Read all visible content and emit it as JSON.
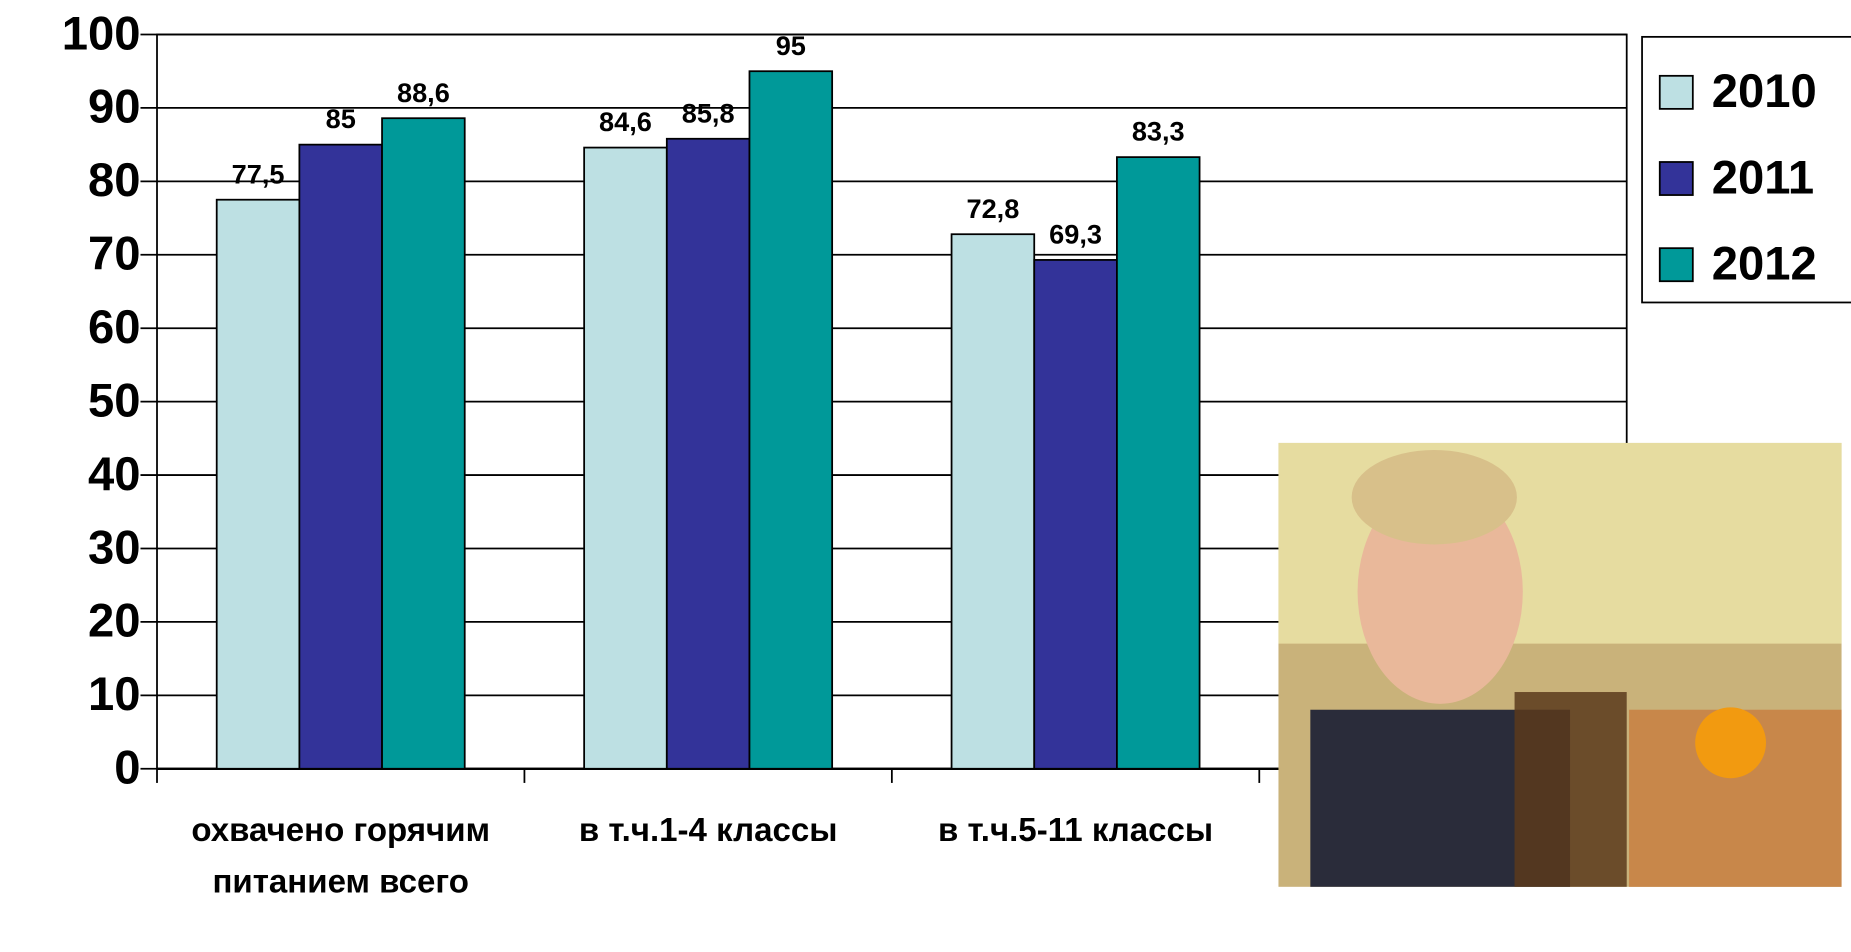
{
  "chart_data": {
    "type": "bar",
    "categories": [
      "охвачено горячим питанием всего",
      "в т.ч.1-4 классы",
      "в т.ч.5-11 классы",
      null
    ],
    "series": [
      {
        "name": "2010",
        "color": "#bde0e3",
        "values": [
          77.5,
          84.6,
          72.8,
          null
        ],
        "value_labels": [
          "77,5",
          "84,6",
          "72,8",
          null
        ]
      },
      {
        "name": "2011",
        "color": "#333399",
        "values": [
          85,
          85.8,
          69.3,
          null
        ],
        "value_labels": [
          "85",
          "85,8",
          "69,3",
          null
        ]
      },
      {
        "name": "2012",
        "color": "#009999",
        "values": [
          88.6,
          95,
          83.3,
          null
        ],
        "value_labels": [
          "88,6",
          "95",
          "83,3",
          null
        ]
      }
    ],
    "ylim": [
      0,
      100
    ],
    "yticks": [
      0,
      10,
      20,
      30,
      40,
      50,
      60,
      70,
      80,
      90,
      100
    ],
    "grid": true,
    "legend": "upper right"
  }
}
